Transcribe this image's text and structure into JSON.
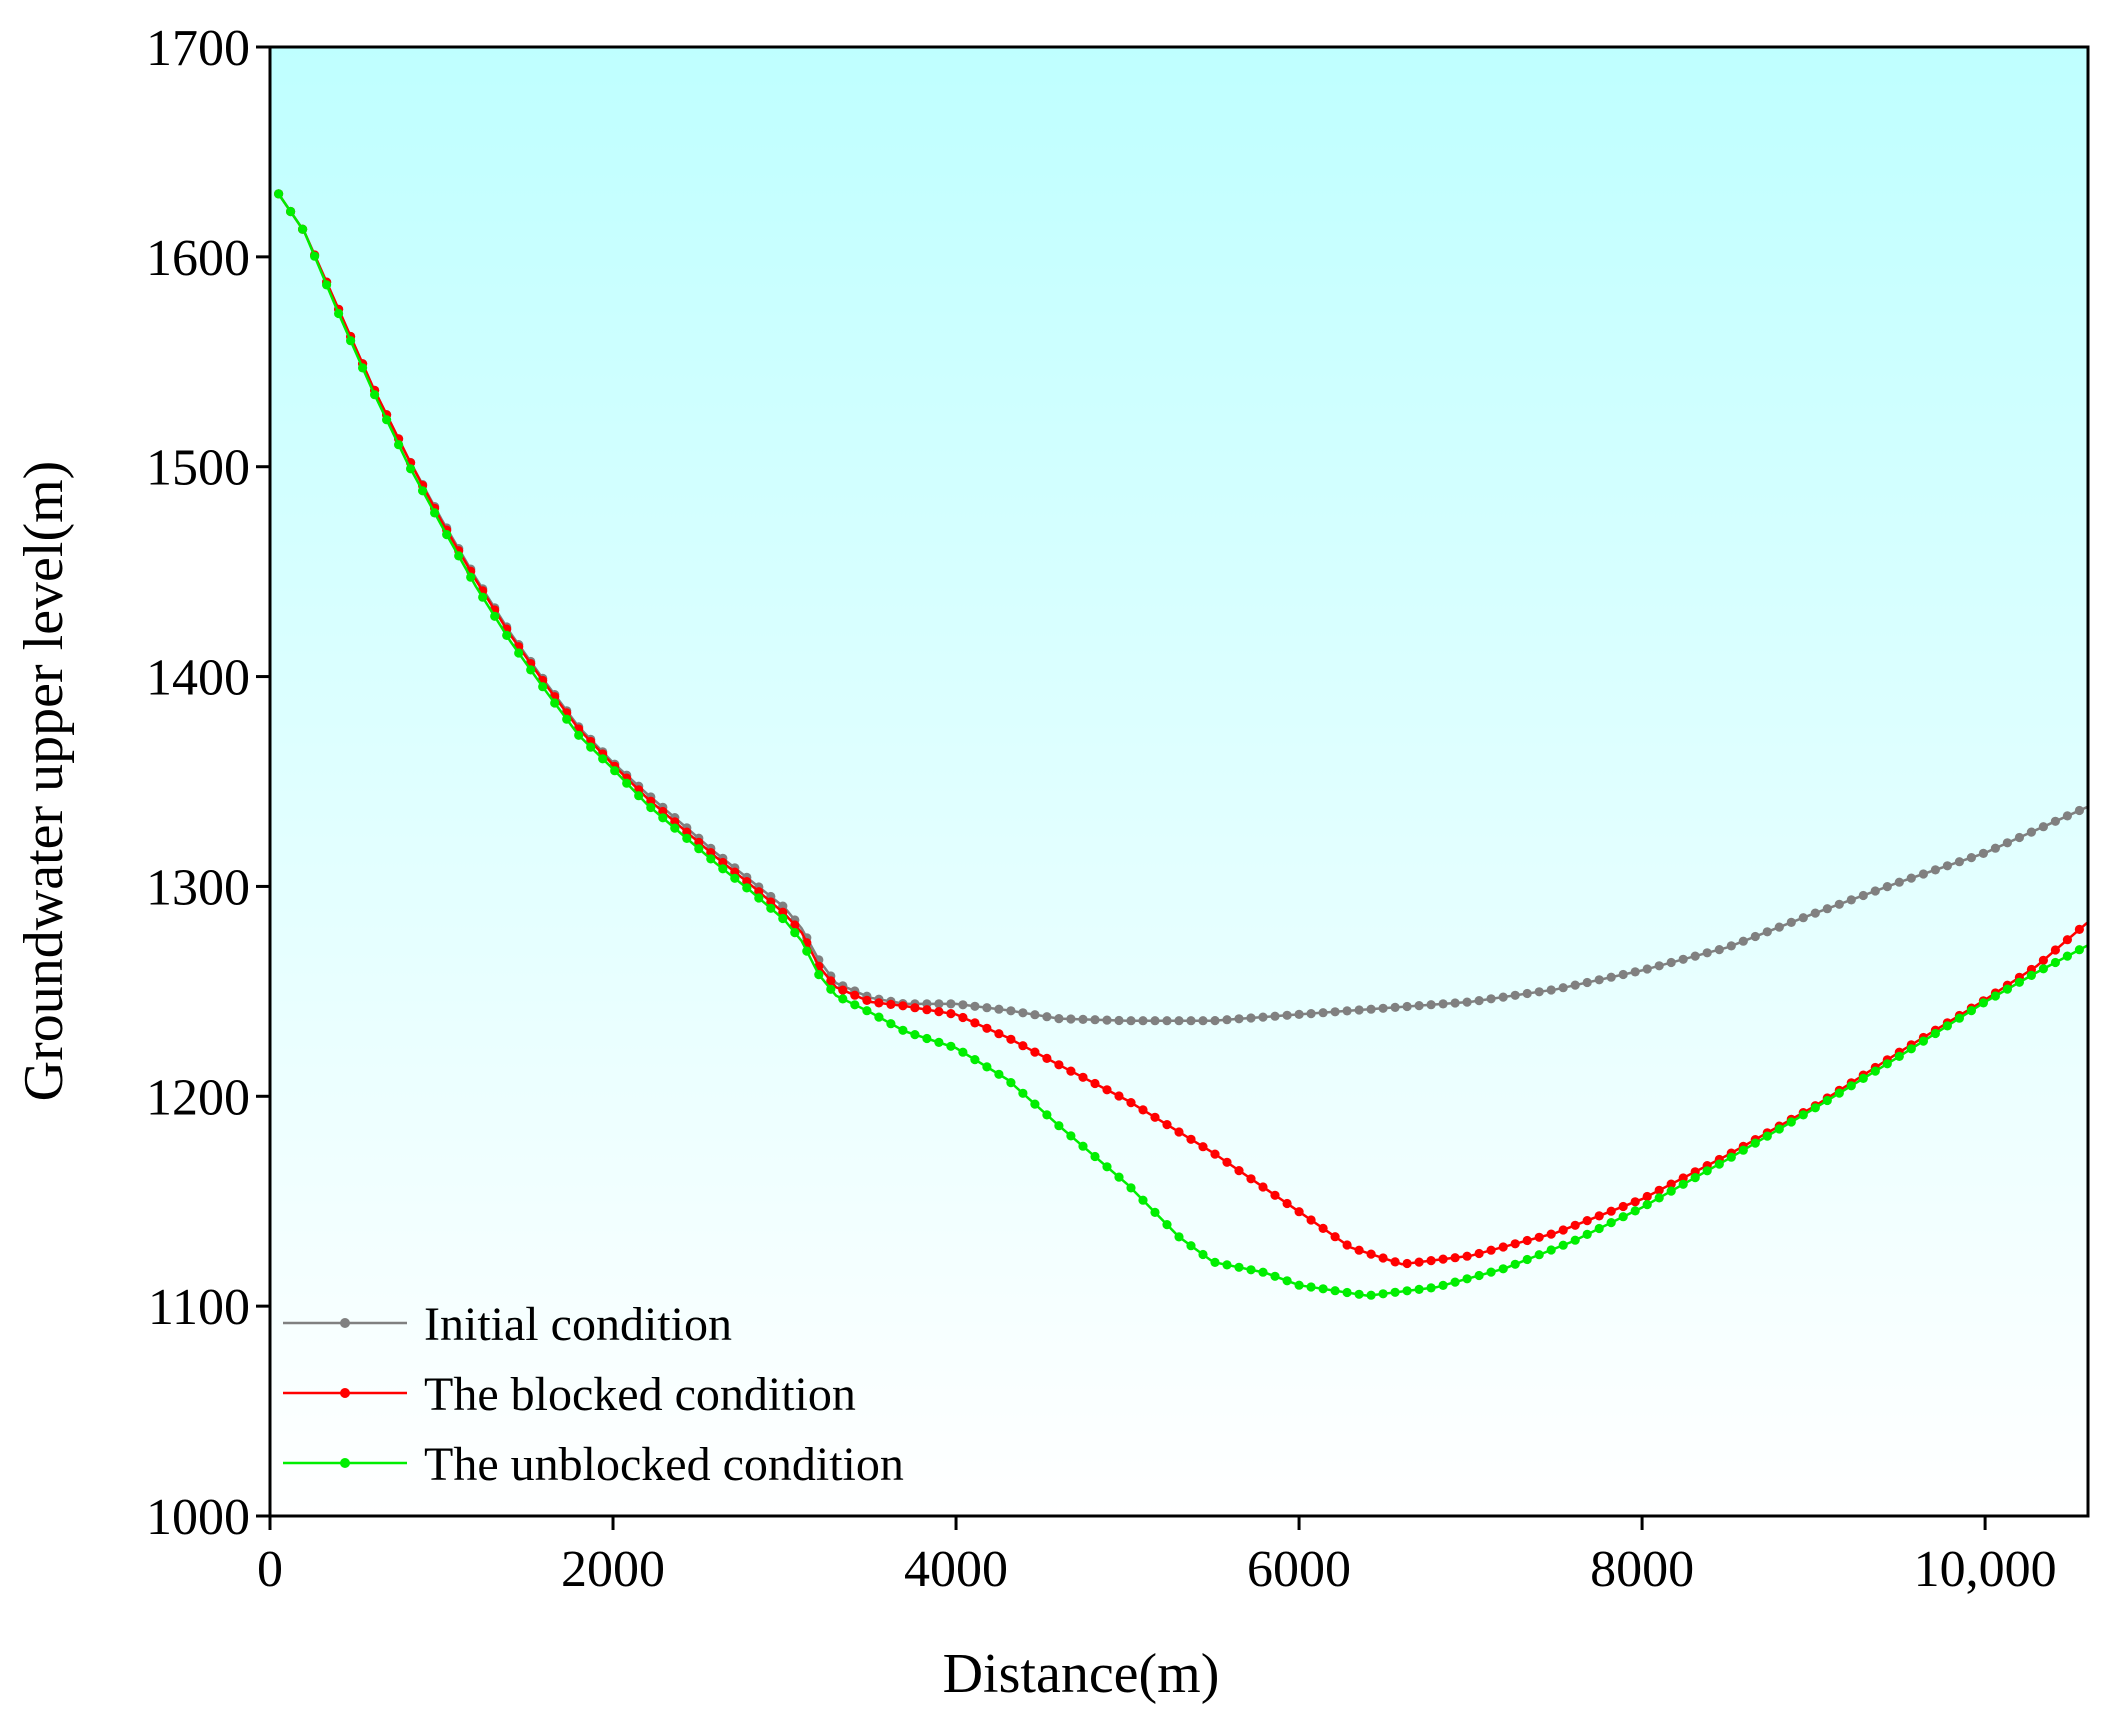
{
  "chart_data": {
    "type": "line",
    "title": "",
    "xlabel": "Distance(m)",
    "ylabel": "Groundwater upper level(m)",
    "xlim": [
      0,
      10600
    ],
    "ylim": [
      1000,
      1700
    ],
    "xticks": [
      0,
      2000,
      4000,
      6000,
      8000,
      10000
    ],
    "xtick_labels": [
      "0",
      "2000",
      "4000",
      "6000",
      "8000",
      "10,000"
    ],
    "yticks": [
      1000,
      1100,
      1200,
      1300,
      1400,
      1500,
      1600,
      1700
    ],
    "ytick_labels": [
      "1000",
      "1100",
      "1200",
      "1300",
      "1400",
      "1500",
      "1600",
      "1700"
    ],
    "grid": false,
    "legend_position": "bottom-left",
    "background_gradient": [
      "#bfffff",
      "#ffffff"
    ],
    "marker_spacing": 70,
    "series": [
      {
        "name": "Initial condition",
        "color": "#808080",
        "points": [
          [
            50,
            1630
          ],
          [
            200,
            1612
          ],
          [
            400,
            1575
          ],
          [
            600,
            1538
          ],
          [
            800,
            1505
          ],
          [
            1000,
            1475
          ],
          [
            1200,
            1447
          ],
          [
            1400,
            1421
          ],
          [
            1600,
            1398
          ],
          [
            1800,
            1376
          ],
          [
            2000,
            1359
          ],
          [
            2200,
            1344
          ],
          [
            2400,
            1330
          ],
          [
            2600,
            1316
          ],
          [
            2800,
            1303
          ],
          [
            3000,
            1290
          ],
          [
            3100,
            1280
          ],
          [
            3200,
            1265
          ],
          [
            3300,
            1254
          ],
          [
            3500,
            1247
          ],
          [
            3700,
            1244
          ],
          [
            4000,
            1244
          ],
          [
            4300,
            1241
          ],
          [
            4600,
            1237
          ],
          [
            5000,
            1236
          ],
          [
            5500,
            1236
          ],
          [
            6000,
            1239
          ],
          [
            6500,
            1242
          ],
          [
            7000,
            1245
          ],
          [
            7500,
            1251
          ],
          [
            8000,
            1260
          ],
          [
            8500,
            1271
          ],
          [
            9000,
            1287
          ],
          [
            9500,
            1302
          ],
          [
            10000,
            1316
          ],
          [
            10300,
            1327
          ],
          [
            10600,
            1338
          ]
        ]
      },
      {
        "name": "The blocked condition",
        "color": "#ff0000",
        "points": [
          [
            50,
            1630
          ],
          [
            200,
            1612
          ],
          [
            400,
            1575
          ],
          [
            600,
            1538
          ],
          [
            800,
            1505
          ],
          [
            1000,
            1474
          ],
          [
            1200,
            1446
          ],
          [
            1400,
            1420
          ],
          [
            1600,
            1397
          ],
          [
            1800,
            1375
          ],
          [
            2000,
            1358
          ],
          [
            2200,
            1342
          ],
          [
            2400,
            1328
          ],
          [
            2600,
            1314
          ],
          [
            2800,
            1301
          ],
          [
            3000,
            1287
          ],
          [
            3100,
            1278
          ],
          [
            3200,
            1262
          ],
          [
            3300,
            1252
          ],
          [
            3500,
            1245
          ],
          [
            3700,
            1243
          ],
          [
            4000,
            1239
          ],
          [
            4300,
            1228
          ],
          [
            4600,
            1215
          ],
          [
            5000,
            1198
          ],
          [
            5500,
            1173
          ],
          [
            6000,
            1145
          ],
          [
            6300,
            1128
          ],
          [
            6600,
            1120
          ],
          [
            7000,
            1124
          ],
          [
            7500,
            1135
          ],
          [
            8000,
            1151
          ],
          [
            8500,
            1172
          ],
          [
            9000,
            1195
          ],
          [
            9500,
            1221
          ],
          [
            10000,
            1246
          ],
          [
            10300,
            1262
          ],
          [
            10600,
            1283
          ]
        ]
      },
      {
        "name": "The unblocked condition",
        "color": "#00ee00",
        "points": [
          [
            50,
            1630
          ],
          [
            200,
            1612
          ],
          [
            400,
            1573
          ],
          [
            600,
            1536
          ],
          [
            800,
            1502
          ],
          [
            1000,
            1472
          ],
          [
            1200,
            1443
          ],
          [
            1400,
            1417
          ],
          [
            1600,
            1394
          ],
          [
            1800,
            1372
          ],
          [
            2000,
            1356
          ],
          [
            2200,
            1339
          ],
          [
            2400,
            1325
          ],
          [
            2600,
            1311
          ],
          [
            2800,
            1298
          ],
          [
            3000,
            1284
          ],
          [
            3100,
            1274
          ],
          [
            3200,
            1258
          ],
          [
            3300,
            1248
          ],
          [
            3500,
            1240
          ],
          [
            3700,
            1231
          ],
          [
            4000,
            1223
          ],
          [
            4300,
            1208
          ],
          [
            4600,
            1186
          ],
          [
            5000,
            1158
          ],
          [
            5300,
            1133
          ],
          [
            5500,
            1121
          ],
          [
            5800,
            1116
          ],
          [
            6000,
            1110
          ],
          [
            6400,
            1105
          ],
          [
            6800,
            1109
          ],
          [
            7200,
            1118
          ],
          [
            7600,
            1131
          ],
          [
            8000,
            1147
          ],
          [
            8500,
            1170
          ],
          [
            9000,
            1194
          ],
          [
            9500,
            1219
          ],
          [
            10000,
            1245
          ],
          [
            10300,
            1259
          ],
          [
            10600,
            1272
          ]
        ]
      }
    ]
  }
}
